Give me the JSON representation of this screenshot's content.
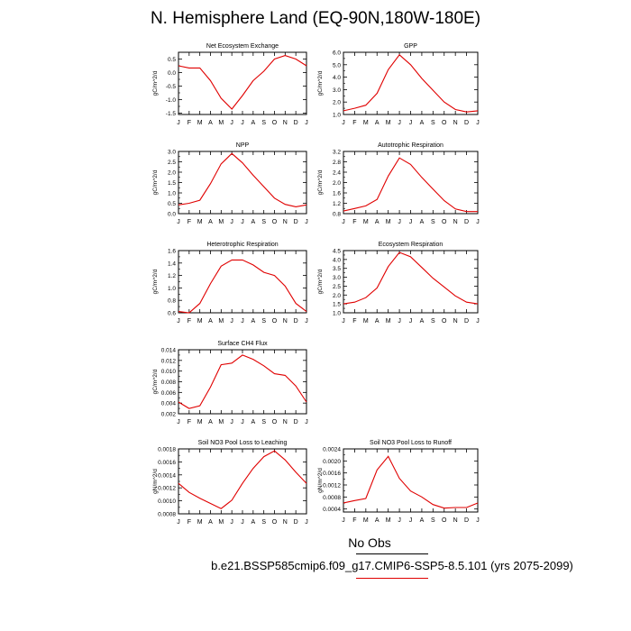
{
  "title": "N. Hemisphere Land (EQ-90N,180W-180E)",
  "legend": {
    "obs_label": "No Obs",
    "case_label": "b.e21.BSSP585cmip6.f09_g17.CMIP6-SSP5-8.5.101 (yrs 2075-2099)",
    "case_color": "#e00000"
  },
  "series_color": "#e00000",
  "chart_data": [
    {
      "type": "line",
      "title": "Net Ecosystem Exchange",
      "ylabel": "gC/m^2/d",
      "categories": [
        "J",
        "F",
        "M",
        "A",
        "M",
        "J",
        "J",
        "A",
        "S",
        "O",
        "N",
        "D",
        "J"
      ],
      "values": [
        0.25,
        0.17,
        0.17,
        -0.3,
        -0.95,
        -1.35,
        -0.85,
        -0.3,
        0.05,
        0.5,
        0.63,
        0.5,
        0.25
      ],
      "ylim": [
        -1.55,
        0.75
      ],
      "yticks": [
        -1.5,
        -1.0,
        -0.5,
        0.0,
        0.5
      ],
      "ytick_labels": [
        "-1.5",
        "-1.0",
        "-0.5",
        "0.0",
        "0.5"
      ]
    },
    {
      "type": "line",
      "title": "GPP",
      "ylabel": "gC/m^2/d",
      "categories": [
        "J",
        "F",
        "M",
        "A",
        "M",
        "J",
        "J",
        "A",
        "S",
        "O",
        "N",
        "D",
        "J"
      ],
      "values": [
        1.3,
        1.5,
        1.75,
        2.7,
        4.6,
        5.8,
        5.0,
        3.9,
        2.95,
        2.0,
        1.4,
        1.2,
        1.3
      ],
      "ylim": [
        1.0,
        6.0
      ],
      "yticks": [
        1.0,
        2.0,
        3.0,
        4.0,
        5.0,
        6.0
      ],
      "ytick_labels": [
        "1.0",
        "2.0",
        "3.0",
        "4.0",
        "5.0",
        "6.0"
      ]
    },
    {
      "type": "line",
      "title": "NPP",
      "ylabel": "gC/m^2/d",
      "categories": [
        "J",
        "F",
        "M",
        "A",
        "M",
        "J",
        "J",
        "A",
        "S",
        "O",
        "N",
        "D",
        "J"
      ],
      "values": [
        0.42,
        0.5,
        0.65,
        1.45,
        2.4,
        2.9,
        2.45,
        1.85,
        1.3,
        0.75,
        0.45,
        0.33,
        0.42
      ],
      "ylim": [
        0.0,
        3.0
      ],
      "yticks": [
        0.0,
        0.5,
        1.0,
        1.5,
        2.0,
        2.5,
        3.0
      ],
      "ytick_labels": [
        "0.0",
        "0.5",
        "1.0",
        "1.5",
        "2.0",
        "2.5",
        "3.0"
      ]
    },
    {
      "type": "line",
      "title": "Autotrophic Respiration",
      "ylabel": "gC/m^2/d",
      "categories": [
        "J",
        "F",
        "M",
        "A",
        "M",
        "J",
        "J",
        "A",
        "S",
        "O",
        "N",
        "D",
        "J"
      ],
      "values": [
        0.9,
        1.0,
        1.1,
        1.35,
        2.25,
        2.95,
        2.7,
        2.2,
        1.75,
        1.3,
        0.98,
        0.88,
        0.88
      ],
      "ylim": [
        0.8,
        3.2
      ],
      "yticks": [
        0.8,
        1.2,
        1.6,
        2.0,
        2.4,
        2.8,
        3.2
      ],
      "ytick_labels": [
        "0.8",
        "1.2",
        "1.6",
        "2.0",
        "2.4",
        "2.8",
        "3.2"
      ]
    },
    {
      "type": "line",
      "title": "Heterotrophic Respiration",
      "ylabel": "gC/m^2/d",
      "categories": [
        "J",
        "F",
        "M",
        "A",
        "M",
        "J",
        "J",
        "A",
        "S",
        "O",
        "N",
        "D",
        "J"
      ],
      "values": [
        0.62,
        0.6,
        0.75,
        1.07,
        1.35,
        1.45,
        1.45,
        1.37,
        1.25,
        1.2,
        1.03,
        0.75,
        0.62
      ],
      "ylim": [
        0.6,
        1.6
      ],
      "yticks": [
        0.6,
        0.8,
        1.0,
        1.2,
        1.4,
        1.6
      ],
      "ytick_labels": [
        "0.6",
        "0.8",
        "1.0",
        "1.2",
        "1.4",
        "1.6"
      ]
    },
    {
      "type": "line",
      "title": "Ecosystem Respiration",
      "ylabel": "gC/m^2/d",
      "categories": [
        "J",
        "F",
        "M",
        "A",
        "M",
        "J",
        "J",
        "A",
        "S",
        "O",
        "N",
        "D",
        "J"
      ],
      "values": [
        1.5,
        1.6,
        1.85,
        2.4,
        3.6,
        4.4,
        4.15,
        3.55,
        2.95,
        2.45,
        1.95,
        1.6,
        1.5
      ],
      "ylim": [
        1.0,
        4.5
      ],
      "yticks": [
        1.0,
        1.5,
        2.0,
        2.5,
        3.0,
        3.5,
        4.0,
        4.5
      ],
      "ytick_labels": [
        "1.0",
        "1.5",
        "2.0",
        "2.5",
        "3.0",
        "3.5",
        "4.0",
        "4.5"
      ]
    },
    {
      "type": "line",
      "title": "Surface CH4 Flux",
      "ylabel": "gC/m^2/d",
      "categories": [
        "J",
        "F",
        "M",
        "A",
        "M",
        "J",
        "J",
        "A",
        "S",
        "O",
        "N",
        "D",
        "J"
      ],
      "values": [
        0.0042,
        0.003,
        0.0035,
        0.007,
        0.0112,
        0.0115,
        0.013,
        0.0122,
        0.011,
        0.0095,
        0.0092,
        0.0072,
        0.0042
      ],
      "ylim": [
        0.002,
        0.014
      ],
      "yticks": [
        0.002,
        0.004,
        0.006,
        0.008,
        0.01,
        0.012,
        0.014
      ],
      "ytick_labels": [
        "0.002",
        "0.004",
        "0.006",
        "0.008",
        "0.010",
        "0.012",
        "0.014"
      ]
    },
    {
      "type": "line",
      "title": "Soil NO3 Pool Loss to Leaching",
      "ylabel": "gN/m^2/d",
      "categories": [
        "J",
        "F",
        "M",
        "A",
        "M",
        "J",
        "J",
        "A",
        "S",
        "O",
        "N",
        "D",
        "J"
      ],
      "values": [
        0.00127,
        0.00113,
        0.00104,
        0.00096,
        0.00088,
        0.00101,
        0.00127,
        0.0015,
        0.00168,
        0.00177,
        0.00163,
        0.00144,
        0.00127
      ],
      "ylim": [
        0.0008,
        0.0018
      ],
      "yticks": [
        0.0008,
        0.001,
        0.0012,
        0.0014,
        0.0016,
        0.0018
      ],
      "ytick_labels": [
        "0.0008",
        "0.0010",
        "0.0012",
        "0.0014",
        "0.0016",
        "0.0018"
      ]
    },
    {
      "type": "line",
      "title": "Soil NO3 Pool Loss to Runoff",
      "ylabel": "gN/m^2/d",
      "categories": [
        "J",
        "F",
        "M",
        "A",
        "M",
        "J",
        "J",
        "A",
        "S",
        "O",
        "N",
        "D",
        "J"
      ],
      "values": [
        0.0006,
        0.00068,
        0.00075,
        0.0017,
        0.00215,
        0.00142,
        0.001,
        0.0008,
        0.00055,
        0.00043,
        0.00045,
        0.00045,
        0.0006
      ],
      "ylim": [
        0.0003,
        0.0024
      ],
      "yticks": [
        0.0004,
        0.0008,
        0.0012,
        0.0016,
        0.002,
        0.0024
      ],
      "ytick_labels": [
        "0.0004",
        "0.0008",
        "0.0012",
        "0.0016",
        "0.0020",
        "0.0024"
      ]
    }
  ]
}
